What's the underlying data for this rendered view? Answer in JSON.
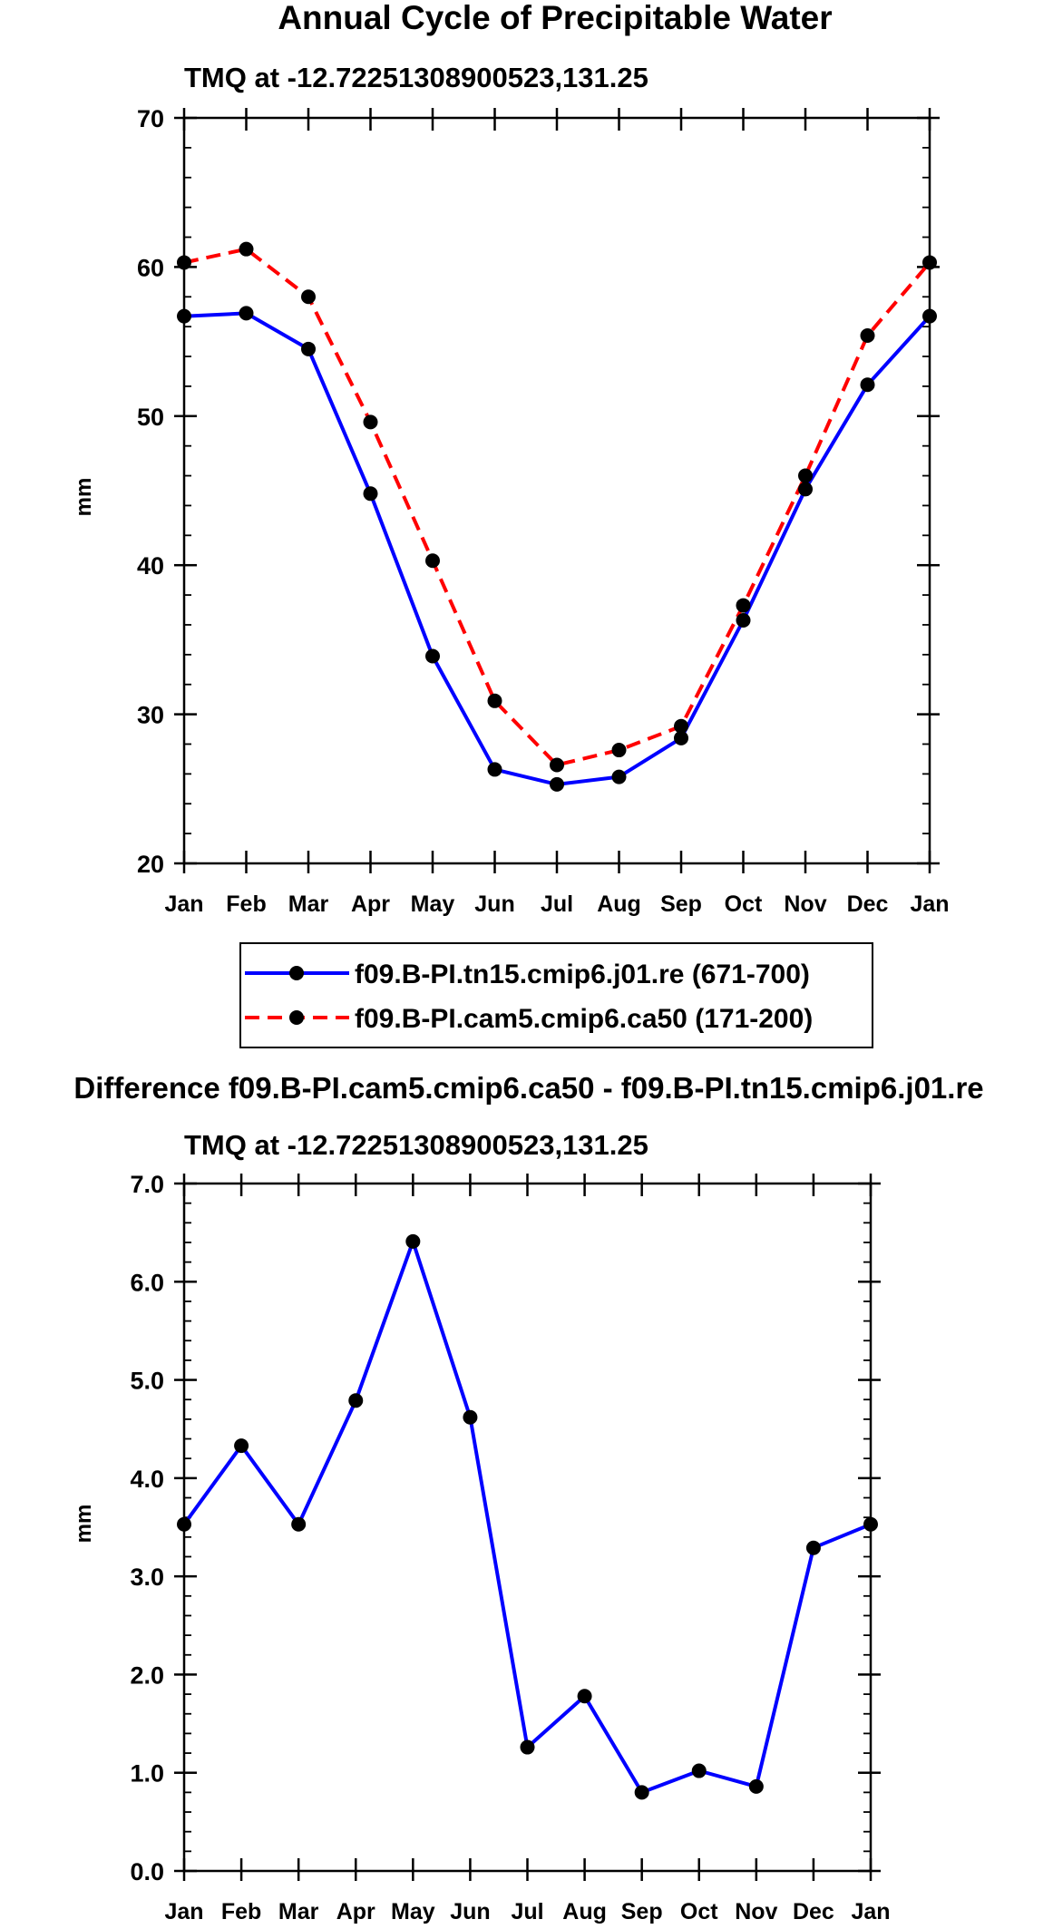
{
  "chart_data": [
    {
      "type": "line",
      "title": "Annual Cycle of Precipitable Water",
      "subtitle": "TMQ at -12.72251308900523,131.25",
      "xlabel": "",
      "ylabel": "mm",
      "categories": [
        "Jan",
        "Feb",
        "Mar",
        "Apr",
        "May",
        "Jun",
        "Jul",
        "Aug",
        "Sep",
        "Oct",
        "Nov",
        "Dec",
        "Jan"
      ],
      "ylim": [
        20,
        70
      ],
      "yticks": [
        20,
        30,
        40,
        50,
        60,
        70
      ],
      "ytick_labels": [
        "20",
        "30",
        "40",
        "50",
        "60",
        "70"
      ],
      "grid": false,
      "legend_position": "bottom",
      "series": [
        {
          "name": "f09.B-PI.tn15.cmip6.j01.re (671-700)",
          "color": "#0000ff",
          "dash": "solid",
          "marker": "circle",
          "values": [
            56.7,
            56.9,
            54.5,
            44.8,
            33.9,
            26.3,
            25.3,
            25.8,
            28.4,
            36.3,
            45.1,
            52.1,
            56.7
          ]
        },
        {
          "name": "f09.B-PI.cam5.cmip6.ca50 (171-200)",
          "color": "#ff0000",
          "dash": "dashed",
          "marker": "circle",
          "values": [
            60.3,
            61.2,
            58.0,
            49.6,
            40.3,
            30.9,
            26.6,
            27.6,
            29.2,
            37.3,
            46.0,
            55.4,
            60.3
          ]
        }
      ]
    },
    {
      "type": "line",
      "title": "Difference f09.B-PI.cam5.cmip6.ca50 - f09.B-PI.tn15.cmip6.j01.re",
      "subtitle": "TMQ at -12.72251308900523,131.25",
      "xlabel": "",
      "ylabel": "mm",
      "categories": [
        "Jan",
        "Feb",
        "Mar",
        "Apr",
        "May",
        "Jun",
        "Jul",
        "Aug",
        "Sep",
        "Oct",
        "Nov",
        "Dec",
        "Jan"
      ],
      "ylim": [
        0,
        7
      ],
      "yticks": [
        0,
        1,
        2,
        3,
        4,
        5,
        6,
        7
      ],
      "ytick_labels": [
        "0.0",
        "1.0",
        "2.0",
        "3.0",
        "4.0",
        "5.0",
        "6.0",
        "7.0"
      ],
      "grid": false,
      "series": [
        {
          "name": "difference",
          "color": "#0000ff",
          "dash": "solid",
          "marker": "circle",
          "values": [
            3.53,
            4.33,
            3.53,
            4.79,
            6.41,
            4.62,
            1.26,
            1.78,
            0.8,
            1.02,
            0.86,
            3.29,
            3.53
          ]
        }
      ]
    }
  ]
}
